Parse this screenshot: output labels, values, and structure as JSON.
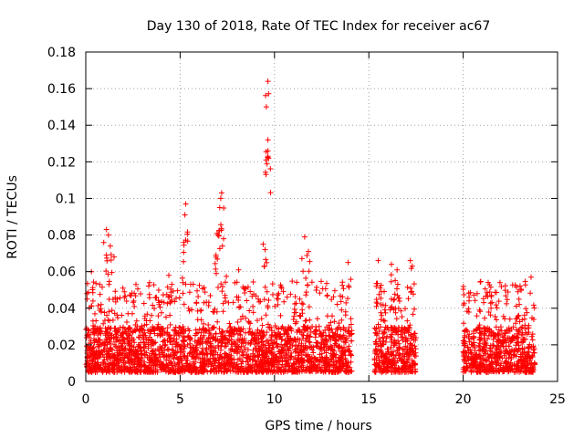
{
  "chart_data": {
    "type": "scatter",
    "title": "Day 130 of 2018, Rate Of TEC Index for receiver ac67",
    "xlabel": "GPS time / hours",
    "ylabel": "ROTI / TECUs",
    "xlim": [
      0,
      25
    ],
    "ylim": [
      0,
      0.18
    ],
    "grid": true,
    "xticks": [
      0,
      5,
      10,
      15,
      20,
      25
    ],
    "xtick_labels": [
      "0",
      "5",
      "10",
      "15",
      "20",
      "25"
    ],
    "yticks": [
      0,
      0.02,
      0.04,
      0.06,
      0.08,
      0.1,
      0.12,
      0.14,
      0.16,
      0.18
    ],
    "ytick_labels": [
      "0",
      "0.02",
      "0.04",
      "0.06",
      "0.08",
      "0.1",
      "0.12",
      "0.14",
      "0.16",
      "0.18"
    ],
    "marker": "+",
    "series_color": "#ff0000",
    "coverage_hours": [
      [
        0,
        14.1
      ],
      [
        15.3,
        17.5
      ],
      [
        20.0,
        23.8
      ]
    ],
    "baseline_range": [
      0.005,
      0.03
    ],
    "peak_points": [
      {
        "x": 9.65,
        "y": 0.164
      },
      {
        "x": 9.65,
        "y": 0.132
      },
      {
        "x": 9.65,
        "y": 0.126
      },
      {
        "x": 9.65,
        "y": 0.123
      },
      {
        "x": 7.2,
        "y": 0.103
      },
      {
        "x": 7.15,
        "y": 0.1
      },
      {
        "x": 7.1,
        "y": 0.095
      },
      {
        "x": 5.3,
        "y": 0.097
      },
      {
        "x": 5.25,
        "y": 0.091
      },
      {
        "x": 5.2,
        "y": 0.076
      },
      {
        "x": 1.1,
        "y": 0.083
      },
      {
        "x": 1.2,
        "y": 0.08
      },
      {
        "x": 1.3,
        "y": 0.074
      },
      {
        "x": 1.5,
        "y": 0.068
      },
      {
        "x": 11.6,
        "y": 0.079
      },
      {
        "x": 11.8,
        "y": 0.071
      },
      {
        "x": 9.4,
        "y": 0.075
      },
      {
        "x": 9.5,
        "y": 0.072
      },
      {
        "x": 7.0,
        "y": 0.08
      },
      {
        "x": 7.3,
        "y": 0.078
      },
      {
        "x": 6.9,
        "y": 0.069
      },
      {
        "x": 0.3,
        "y": 0.06
      },
      {
        "x": 4.4,
        "y": 0.058
      },
      {
        "x": 8.1,
        "y": 0.061
      },
      {
        "x": 13.9,
        "y": 0.065
      },
      {
        "x": 15.5,
        "y": 0.066
      },
      {
        "x": 16.2,
        "y": 0.064
      },
      {
        "x": 16.5,
        "y": 0.061
      },
      {
        "x": 17.2,
        "y": 0.066
      },
      {
        "x": 17.3,
        "y": 0.063
      },
      {
        "x": 23.6,
        "y": 0.057
      },
      {
        "x": 22.9,
        "y": 0.049
      },
      {
        "x": 21.5,
        "y": 0.047
      }
    ]
  }
}
